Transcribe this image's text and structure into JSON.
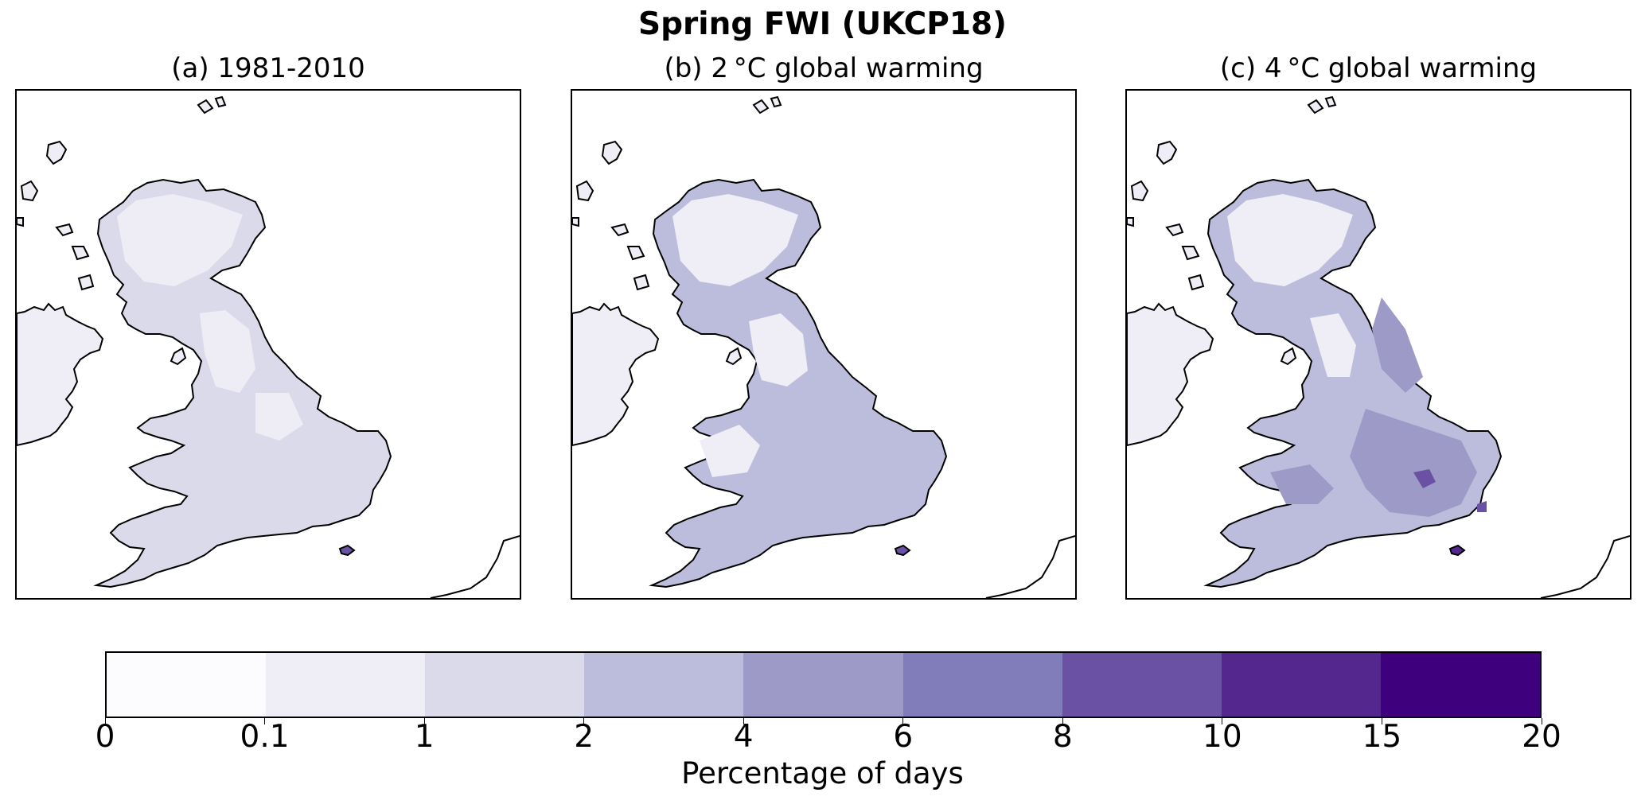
{
  "figure_title": "Spring FWI (UKCP18)",
  "panels": [
    {
      "label": "(a) 1981-2010",
      "period": "1981-2010"
    },
    {
      "label": "(b) 2 °C global warming",
      "period": "2 °C global warming"
    },
    {
      "label": "(c) 4 °C global warming",
      "period": "4 °C global warming"
    }
  ],
  "colorbar": {
    "label": "Percentage of days",
    "tick_labels": [
      "0",
      "0.1",
      "1",
      "2",
      "4",
      "6",
      "8",
      "10",
      "15",
      "20"
    ],
    "colors": [
      "#fcfbfd",
      "#efedf5",
      "#dadaeb",
      "#bcbddc",
      "#9e9ac8",
      "#807dba",
      "#6a51a3",
      "#54278f",
      "#3f007d"
    ]
  },
  "map_data": {
    "type": "choropleth",
    "region": "Great Britain and Ireland",
    "variable": "Spring Fire Weather Index",
    "units": "Percentage of days",
    "bins": [
      0,
      0.1,
      1,
      2,
      4,
      6,
      8,
      10,
      15,
      20
    ]
  }
}
